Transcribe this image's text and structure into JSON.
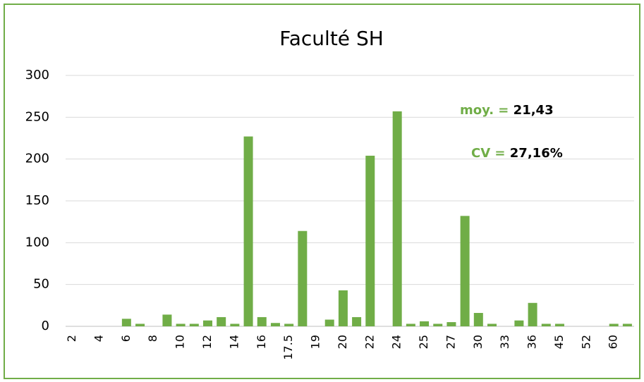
{
  "chart_data": {
    "type": "bar",
    "title": "Faculté SH",
    "categories": [
      "2",
      null,
      "4",
      null,
      "6",
      null,
      "8",
      null,
      "10",
      null,
      "12",
      null,
      "14",
      null,
      "16",
      null,
      "17.5",
      null,
      "19",
      null,
      "20",
      null,
      "22",
      null,
      "24",
      null,
      "25",
      null,
      "27",
      null,
      "30",
      null,
      "33",
      null,
      "36",
      null,
      "45",
      null,
      "52",
      null,
      "60",
      null
    ],
    "values": [
      0,
      0,
      0,
      0,
      9,
      3,
      0,
      14,
      3,
      3,
      7,
      11,
      3,
      227,
      11,
      4,
      3,
      114,
      0,
      8,
      43,
      11,
      204,
      0,
      257,
      3,
      6,
      3,
      5,
      132,
      16,
      3,
      0,
      7,
      28,
      3,
      3,
      0,
      0,
      0,
      3,
      3
    ],
    "color": "#70ad47",
    "ylim": [
      0,
      300
    ],
    "yticks": [
      0,
      50,
      100,
      150,
      200,
      250,
      300
    ],
    "grid": true,
    "annotations": [
      {
        "label": "moy. =",
        "value": "21,43"
      },
      {
        "label": "CV =",
        "value": "27,16%"
      }
    ]
  }
}
